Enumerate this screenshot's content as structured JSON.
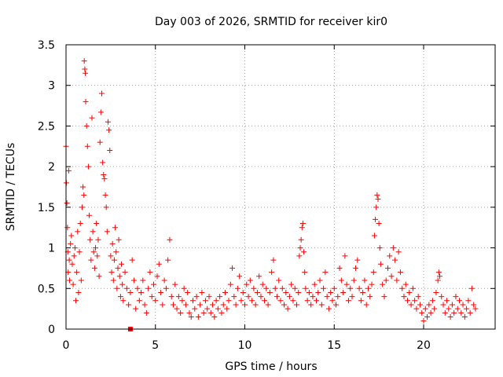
{
  "chart_data": {
    "type": "scatter",
    "title": "Day 003 of 2026, SRMTID for receiver kir0",
    "xlabel": "GPS time / hours",
    "ylabel": "SRMTID / TECUs",
    "xlim": [
      0,
      24
    ],
    "ylim": [
      0,
      3.5
    ],
    "grid": true,
    "marker": "plus",
    "series_color": "#ff0000",
    "x_ticks": [
      {
        "value": 0,
        "label": "0"
      },
      {
        "value": 5,
        "label": "5"
      },
      {
        "value": 10,
        "label": "10"
      },
      {
        "value": 15,
        "label": "15"
      },
      {
        "value": 20,
        "label": "20"
      }
    ],
    "y_ticks": [
      {
        "value": 0,
        "label": "0"
      },
      {
        "value": 0.5,
        "label": "0.5"
      },
      {
        "value": 1,
        "label": "1"
      },
      {
        "value": 1.5,
        "label": "1.5"
      },
      {
        "value": 2,
        "label": "2"
      },
      {
        "value": 2.5,
        "label": "2.5"
      },
      {
        "value": 3,
        "label": "3"
      },
      {
        "value": 3.5,
        "label": "3.5"
      }
    ],
    "series": [
      {
        "name": "SRMTID",
        "points": [
          [
            0.0,
            2.25
          ],
          [
            0.02,
            1.8
          ],
          [
            0.05,
            1.55
          ],
          [
            0.08,
            1.25
          ],
          [
            0.1,
            0.95
          ],
          [
            0.12,
            0.7
          ],
          [
            0.15,
            1.95
          ],
          [
            0.18,
            0.85
          ],
          [
            0.2,
            0.6
          ],
          [
            0.25,
            1.05
          ],
          [
            0.3,
            1.15
          ],
          [
            0.35,
            0.8
          ],
          [
            0.4,
            0.55
          ],
          [
            0.45,
            0.9
          ],
          [
            0.5,
            1.0
          ],
          [
            0.55,
            0.35
          ],
          [
            0.6,
            0.7
          ],
          [
            0.65,
            1.2
          ],
          [
            0.7,
            0.45
          ],
          [
            0.75,
            0.95
          ],
          [
            0.8,
            1.3
          ],
          [
            0.85,
            0.6
          ],
          [
            0.9,
            1.5
          ],
          [
            0.95,
            1.75
          ],
          [
            1.0,
            1.65
          ],
          [
            1.02,
            3.3
          ],
          [
            1.05,
            3.2
          ],
          [
            1.08,
            3.15
          ],
          [
            1.1,
            2.8
          ],
          [
            1.15,
            2.5
          ],
          [
            1.2,
            2.25
          ],
          [
            1.25,
            2.0
          ],
          [
            1.3,
            1.4
          ],
          [
            1.35,
            1.1
          ],
          [
            1.4,
            0.85
          ],
          [
            1.45,
            2.6
          ],
          [
            1.5,
            1.2
          ],
          [
            1.55,
            0.95
          ],
          [
            1.6,
            0.75
          ],
          [
            1.65,
            1.0
          ],
          [
            1.7,
            1.3
          ],
          [
            1.75,
            0.9
          ],
          [
            1.8,
            1.1
          ],
          [
            1.85,
            0.65
          ],
          [
            1.9,
            2.3
          ],
          [
            1.95,
            2.67
          ],
          [
            2.0,
            2.9
          ],
          [
            2.05,
            2.05
          ],
          [
            2.1,
            1.9
          ],
          [
            2.15,
            1.85
          ],
          [
            2.2,
            1.65
          ],
          [
            2.25,
            1.5
          ],
          [
            2.3,
            1.2
          ],
          [
            2.35,
            2.55
          ],
          [
            2.4,
            2.45
          ],
          [
            2.45,
            2.2
          ],
          [
            2.5,
            0.9
          ],
          [
            2.55,
            0.7
          ],
          [
            2.6,
            1.05
          ],
          [
            2.65,
            0.6
          ],
          [
            2.7,
            0.85
          ],
          [
            2.75,
            1.25
          ],
          [
            2.8,
            0.95
          ],
          [
            2.85,
            0.5
          ],
          [
            2.9,
            0.75
          ],
          [
            2.95,
            1.1
          ],
          [
            3.0,
            0.65
          ],
          [
            3.05,
            0.4
          ],
          [
            3.1,
            0.8
          ],
          [
            3.15,
            0.55
          ],
          [
            3.2,
            0.35
          ],
          [
            3.3,
            0.7
          ],
          [
            3.4,
            0.5
          ],
          [
            3.5,
            0.3
          ],
          [
            3.6,
            0.45
          ],
          [
            3.7,
            0.85
          ],
          [
            3.8,
            0.6
          ],
          [
            3.9,
            0.25
          ],
          [
            4.0,
            0.5
          ],
          [
            4.1,
            0.35
          ],
          [
            4.2,
            0.45
          ],
          [
            4.3,
            0.6
          ],
          [
            4.4,
            0.3
          ],
          [
            4.5,
            0.2
          ],
          [
            4.6,
            0.5
          ],
          [
            4.7,
            0.7
          ],
          [
            4.8,
            0.4
          ],
          [
            4.9,
            0.55
          ],
          [
            5.0,
            0.35
          ],
          [
            5.1,
            0.65
          ],
          [
            5.2,
            0.8
          ],
          [
            5.3,
            0.45
          ],
          [
            5.4,
            0.3
          ],
          [
            5.5,
            0.6
          ],
          [
            5.6,
            0.5
          ],
          [
            5.7,
            0.85
          ],
          [
            5.8,
            1.1
          ],
          [
            5.9,
            0.4
          ],
          [
            6.0,
            0.3
          ],
          [
            6.1,
            0.55
          ],
          [
            6.2,
            0.25
          ],
          [
            6.3,
            0.4
          ],
          [
            6.4,
            0.2
          ],
          [
            6.5,
            0.35
          ],
          [
            6.6,
            0.5
          ],
          [
            6.7,
            0.3
          ],
          [
            6.8,
            0.45
          ],
          [
            6.9,
            0.2
          ],
          [
            7.0,
            0.15
          ],
          [
            7.1,
            0.35
          ],
          [
            7.2,
            0.25
          ],
          [
            7.3,
            0.4
          ],
          [
            7.4,
            0.15
          ],
          [
            7.5,
            0.3
          ],
          [
            7.6,
            0.45
          ],
          [
            7.7,
            0.2
          ],
          [
            7.8,
            0.35
          ],
          [
            7.9,
            0.25
          ],
          [
            8.0,
            0.4
          ],
          [
            8.1,
            0.2
          ],
          [
            8.2,
            0.3
          ],
          [
            8.3,
            0.15
          ],
          [
            8.4,
            0.35
          ],
          [
            8.5,
            0.25
          ],
          [
            8.6,
            0.4
          ],
          [
            8.7,
            0.2
          ],
          [
            8.8,
            0.3
          ],
          [
            8.9,
            0.45
          ],
          [
            9.0,
            0.25
          ],
          [
            9.1,
            0.35
          ],
          [
            9.2,
            0.55
          ],
          [
            9.3,
            0.75
          ],
          [
            9.4,
            0.4
          ],
          [
            9.5,
            0.3
          ],
          [
            9.6,
            0.5
          ],
          [
            9.7,
            0.65
          ],
          [
            9.8,
            0.35
          ],
          [
            9.9,
            0.45
          ],
          [
            10.0,
            0.3
          ],
          [
            10.1,
            0.55
          ],
          [
            10.2,
            0.4
          ],
          [
            10.3,
            0.6
          ],
          [
            10.4,
            0.35
          ],
          [
            10.5,
            0.5
          ],
          [
            10.6,
            0.3
          ],
          [
            10.7,
            0.45
          ],
          [
            10.8,
            0.65
          ],
          [
            10.9,
            0.4
          ],
          [
            11.0,
            0.55
          ],
          [
            11.1,
            0.35
          ],
          [
            11.2,
            0.5
          ],
          [
            11.3,
            0.3
          ],
          [
            11.4,
            0.45
          ],
          [
            11.5,
            0.7
          ],
          [
            11.6,
            0.85
          ],
          [
            11.7,
            0.5
          ],
          [
            11.8,
            0.4
          ],
          [
            11.9,
            0.6
          ],
          [
            12.0,
            0.35
          ],
          [
            12.1,
            0.5
          ],
          [
            12.2,
            0.3
          ],
          [
            12.3,
            0.45
          ],
          [
            12.4,
            0.25
          ],
          [
            12.5,
            0.4
          ],
          [
            12.6,
            0.55
          ],
          [
            12.7,
            0.35
          ],
          [
            12.8,
            0.5
          ],
          [
            12.9,
            0.3
          ],
          [
            13.0,
            0.45
          ],
          [
            13.05,
            0.9
          ],
          [
            13.1,
            1.0
          ],
          [
            13.15,
            1.1
          ],
          [
            13.2,
            1.25
          ],
          [
            13.25,
            1.3
          ],
          [
            13.3,
            0.95
          ],
          [
            13.35,
            0.7
          ],
          [
            13.4,
            0.5
          ],
          [
            13.5,
            0.35
          ],
          [
            13.6,
            0.45
          ],
          [
            13.7,
            0.3
          ],
          [
            13.8,
            0.4
          ],
          [
            13.9,
            0.55
          ],
          [
            14.0,
            0.35
          ],
          [
            14.1,
            0.45
          ],
          [
            14.2,
            0.6
          ],
          [
            14.3,
            0.3
          ],
          [
            14.4,
            0.5
          ],
          [
            14.5,
            0.7
          ],
          [
            14.6,
            0.4
          ],
          [
            14.7,
            0.25
          ],
          [
            14.8,
            0.45
          ],
          [
            14.9,
            0.35
          ],
          [
            15.0,
            0.5
          ],
          [
            15.1,
            0.3
          ],
          [
            15.2,
            0.4
          ],
          [
            15.3,
            0.75
          ],
          [
            15.4,
            0.6
          ],
          [
            15.5,
            0.45
          ],
          [
            15.6,
            0.9
          ],
          [
            15.7,
            0.55
          ],
          [
            15.8,
            0.35
          ],
          [
            15.9,
            0.5
          ],
          [
            16.0,
            0.4
          ],
          [
            16.1,
            0.6
          ],
          [
            16.2,
            0.75
          ],
          [
            16.3,
            0.85
          ],
          [
            16.4,
            0.5
          ],
          [
            16.5,
            0.35
          ],
          [
            16.6,
            0.45
          ],
          [
            16.7,
            0.6
          ],
          [
            16.8,
            0.3
          ],
          [
            16.9,
            0.5
          ],
          [
            17.0,
            0.4
          ],
          [
            17.1,
            0.55
          ],
          [
            17.2,
            0.7
          ],
          [
            17.25,
            1.15
          ],
          [
            17.3,
            1.35
          ],
          [
            17.35,
            1.5
          ],
          [
            17.4,
            1.65
          ],
          [
            17.45,
            1.6
          ],
          [
            17.5,
            1.3
          ],
          [
            17.55,
            1.0
          ],
          [
            17.6,
            0.8
          ],
          [
            17.7,
            0.55
          ],
          [
            17.8,
            0.4
          ],
          [
            17.9,
            0.6
          ],
          [
            18.0,
            0.75
          ],
          [
            18.1,
            0.9
          ],
          [
            18.2,
            0.65
          ],
          [
            18.3,
            1.0
          ],
          [
            18.4,
            0.85
          ],
          [
            18.5,
            0.6
          ],
          [
            18.6,
            0.95
          ],
          [
            18.7,
            0.7
          ],
          [
            18.8,
            0.5
          ],
          [
            18.9,
            0.4
          ],
          [
            19.0,
            0.55
          ],
          [
            19.1,
            0.35
          ],
          [
            19.2,
            0.45
          ],
          [
            19.3,
            0.3
          ],
          [
            19.4,
            0.5
          ],
          [
            19.5,
            0.35
          ],
          [
            19.6,
            0.25
          ],
          [
            19.7,
            0.4
          ],
          [
            19.8,
            0.3
          ],
          [
            19.9,
            0.2
          ],
          [
            20.0,
            0.1
          ],
          [
            20.1,
            0.25
          ],
          [
            20.2,
            0.15
          ],
          [
            20.3,
            0.3
          ],
          [
            20.4,
            0.2
          ],
          [
            20.5,
            0.35
          ],
          [
            20.6,
            0.25
          ],
          [
            20.7,
            0.45
          ],
          [
            20.8,
            0.6
          ],
          [
            20.85,
            0.7
          ],
          [
            20.9,
            0.65
          ],
          [
            21.0,
            0.4
          ],
          [
            21.1,
            0.3
          ],
          [
            21.2,
            0.2
          ],
          [
            21.3,
            0.35
          ],
          [
            21.4,
            0.25
          ],
          [
            21.5,
            0.15
          ],
          [
            21.6,
            0.3
          ],
          [
            21.7,
            0.2
          ],
          [
            21.8,
            0.4
          ],
          [
            21.9,
            0.25
          ],
          [
            22.0,
            0.35
          ],
          [
            22.1,
            0.2
          ],
          [
            22.2,
            0.3
          ],
          [
            22.3,
            0.15
          ],
          [
            22.4,
            0.25
          ],
          [
            22.5,
            0.35
          ],
          [
            22.6,
            0.2
          ],
          [
            22.7,
            0.5
          ],
          [
            22.8,
            0.3
          ],
          [
            22.9,
            0.25
          ]
        ]
      }
    ],
    "extra_markers": [
      {
        "shape": "square",
        "x": 3.6,
        "y": 0.0
      }
    ]
  }
}
